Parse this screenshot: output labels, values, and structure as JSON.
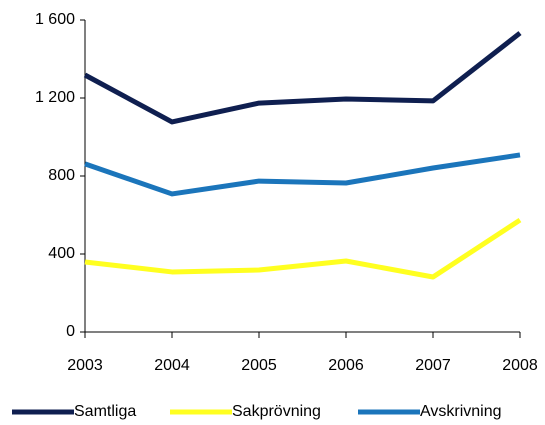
{
  "chart_data": {
    "type": "line",
    "x": [
      2003,
      2004,
      2005,
      2006,
      2007,
      2008
    ],
    "xlim": [
      2003,
      2008
    ],
    "xticks": [
      2003,
      2004,
      2005,
      2006,
      2007,
      2008
    ],
    "ylim": [
      0,
      1600
    ],
    "yticks": [
      0,
      400,
      800,
      {
        "value": 1200,
        "label": "1 200"
      },
      {
        "value": 1600,
        "label": "1 600"
      }
    ],
    "legend": "bottom",
    "series": [
      {
        "name": "Samtliga",
        "color": "#0f1f50",
        "values": [
          1318,
          1077,
          1174,
          1195,
          1185,
          1533
        ]
      },
      {
        "name": "Sakprövning",
        "color": "#ffff20",
        "values": [
          359,
          308,
          318,
          364,
          282,
          574
        ]
      },
      {
        "name": "Avskrivning",
        "color": "#1b75bb",
        "values": [
          862,
          708,
          774,
          764,
          841,
          908
        ]
      }
    ]
  }
}
